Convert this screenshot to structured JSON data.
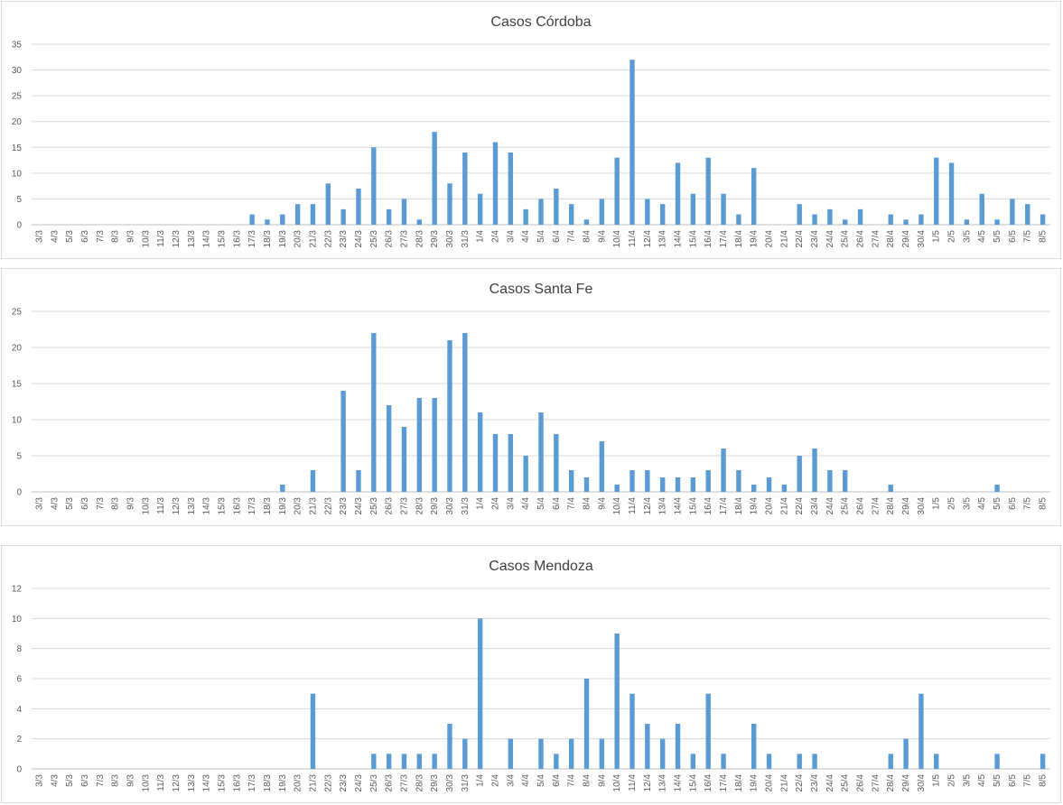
{
  "chart_data": [
    {
      "type": "bar",
      "title": "Casos Córdoba",
      "ylim": [
        0,
        35
      ],
      "yticks": [
        0,
        5,
        10,
        15,
        20,
        25,
        30,
        35
      ],
      "grid": true,
      "legend": "none",
      "color": "#5b9bd5",
      "categories": [
        "3/3",
        "4/3",
        "5/3",
        "6/3",
        "7/3",
        "8/3",
        "9/3",
        "10/3",
        "11/3",
        "12/3",
        "13/3",
        "14/3",
        "15/3",
        "16/3",
        "17/3",
        "18/3",
        "19/3",
        "20/3",
        "21/3",
        "22/3",
        "23/3",
        "24/3",
        "25/3",
        "26/3",
        "27/3",
        "28/3",
        "29/3",
        "30/3",
        "31/3",
        "1/4",
        "2/4",
        "3/4",
        "4/4",
        "5/4",
        "6/4",
        "7/4",
        "8/4",
        "9/4",
        "10/4",
        "11/4",
        "12/4",
        "13/4",
        "14/4",
        "15/4",
        "16/4",
        "17/4",
        "18/4",
        "19/4",
        "20/4",
        "21/4",
        "22/4",
        "23/4",
        "24/4",
        "25/4",
        "26/4",
        "27/4",
        "28/4",
        "29/4",
        "30/4",
        "1/5",
        "2/5",
        "3/5",
        "4/5",
        "5/5",
        "6/5",
        "7/5",
        "8/5"
      ],
      "values": [
        0,
        0,
        0,
        0,
        0,
        0,
        0,
        0,
        0,
        0,
        0,
        0,
        0,
        0,
        2,
        1,
        2,
        4,
        4,
        8,
        3,
        7,
        15,
        3,
        5,
        1,
        18,
        8,
        14,
        6,
        16,
        14,
        3,
        5,
        7,
        4,
        1,
        5,
        13,
        32,
        5,
        4,
        12,
        6,
        13,
        6,
        2,
        11,
        0,
        0,
        4,
        2,
        3,
        1,
        3,
        0,
        2,
        1,
        2,
        13,
        12,
        1,
        6,
        1,
        5,
        4,
        2
      ]
    },
    {
      "type": "bar",
      "title": "Casos Santa Fe",
      "ylim": [
        0,
        25
      ],
      "yticks": [
        0,
        5,
        10,
        15,
        20,
        25
      ],
      "grid": true,
      "legend": "none",
      "color": "#5b9bd5",
      "categories": [
        "3/3",
        "4/3",
        "5/3",
        "6/3",
        "7/3",
        "8/3",
        "9/3",
        "10/3",
        "11/3",
        "12/3",
        "13/3",
        "14/3",
        "15/3",
        "16/3",
        "17/3",
        "18/3",
        "19/3",
        "20/3",
        "21/3",
        "22/3",
        "23/3",
        "24/3",
        "25/3",
        "26/3",
        "27/3",
        "28/3",
        "29/3",
        "30/3",
        "31/3",
        "1/4",
        "2/4",
        "3/4",
        "4/4",
        "5/4",
        "6/4",
        "7/4",
        "8/4",
        "9/4",
        "10/4",
        "11/4",
        "12/4",
        "13/4",
        "14/4",
        "15/4",
        "16/4",
        "17/4",
        "18/4",
        "19/4",
        "20/4",
        "21/4",
        "22/4",
        "23/4",
        "24/4",
        "25/4",
        "26/4",
        "27/4",
        "28/4",
        "29/4",
        "30/4",
        "1/5",
        "2/5",
        "3/5",
        "4/5",
        "5/5",
        "6/5",
        "7/5",
        "8/5"
      ],
      "values": [
        0,
        0,
        0,
        0,
        0,
        0,
        0,
        0,
        0,
        0,
        0,
        0,
        0,
        0,
        0,
        0,
        1,
        0,
        3,
        0,
        14,
        3,
        22,
        12,
        9,
        13,
        13,
        21,
        22,
        11,
        8,
        8,
        5,
        11,
        8,
        3,
        2,
        7,
        1,
        3,
        3,
        2,
        2,
        2,
        3,
        6,
        3,
        1,
        2,
        1,
        5,
        6,
        3,
        3,
        0,
        0,
        1,
        0,
        0,
        0,
        0,
        0,
        0,
        1,
        0,
        0,
        0
      ]
    },
    {
      "type": "bar",
      "title": "Casos Mendoza",
      "ylim": [
        0,
        12
      ],
      "yticks": [
        0,
        2,
        4,
        6,
        8,
        10,
        12
      ],
      "grid": true,
      "legend": "none",
      "color": "#5b9bd5",
      "categories": [
        "3/3",
        "4/3",
        "5/3",
        "6/3",
        "7/3",
        "8/3",
        "9/3",
        "10/3",
        "11/3",
        "12/3",
        "13/3",
        "14/3",
        "15/3",
        "16/3",
        "17/3",
        "18/3",
        "19/3",
        "20/3",
        "21/3",
        "22/3",
        "23/3",
        "24/3",
        "25/3",
        "26/3",
        "27/3",
        "28/3",
        "29/3",
        "30/3",
        "31/3",
        "1/4",
        "2/4",
        "3/4",
        "4/4",
        "5/4",
        "6/4",
        "7/4",
        "8/4",
        "9/4",
        "10/4",
        "11/4",
        "12/4",
        "13/4",
        "14/4",
        "15/4",
        "16/4",
        "17/4",
        "18/4",
        "19/4",
        "20/4",
        "21/4",
        "22/4",
        "23/4",
        "24/4",
        "25/4",
        "26/4",
        "27/4",
        "28/4",
        "29/4",
        "30/4",
        "1/5",
        "2/5",
        "3/5",
        "4/5",
        "5/5",
        "6/5",
        "7/5",
        "8/5"
      ],
      "values": [
        0,
        0,
        0,
        0,
        0,
        0,
        0,
        0,
        0,
        0,
        0,
        0,
        0,
        0,
        0,
        0,
        0,
        0,
        5,
        0,
        0,
        0,
        1,
        1,
        1,
        1,
        1,
        3,
        2,
        10,
        0,
        2,
        0,
        2,
        1,
        2,
        6,
        2,
        9,
        5,
        3,
        2,
        3,
        1,
        5,
        1,
        0,
        3,
        1,
        0,
        1,
        1,
        0,
        0,
        0,
        0,
        1,
        2,
        5,
        1,
        0,
        0,
        0,
        1,
        0,
        0,
        1
      ]
    }
  ]
}
